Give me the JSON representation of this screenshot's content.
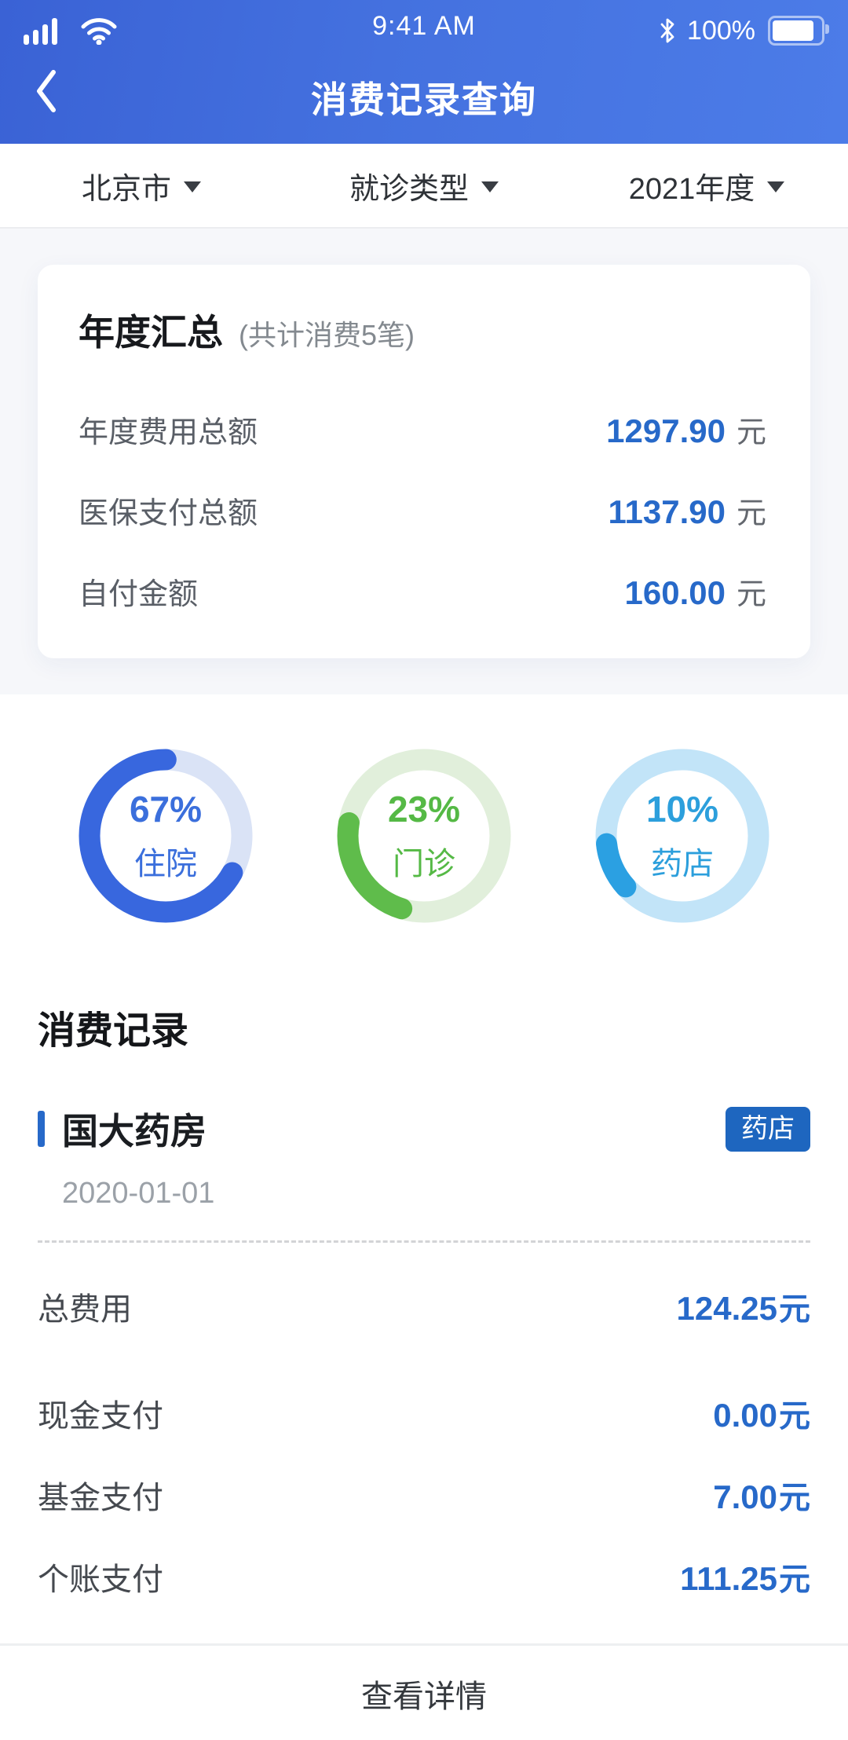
{
  "status_bar": {
    "time": "9:41 AM",
    "battery_pct": "100%"
  },
  "header": {
    "title": "消费记录查询"
  },
  "filter_bar": {
    "options": [
      {
        "label": "北京市"
      },
      {
        "label": "就诊类型"
      },
      {
        "label": "2021年度"
      }
    ]
  },
  "summary_card": {
    "title": "年度汇总",
    "subtitle": "(共计消费5笔)",
    "rows": [
      {
        "label": "年度费用总额",
        "value": "1297.90",
        "unit": "元"
      },
      {
        "label": "医保支付总额",
        "value": "1137.90",
        "unit": "元"
      },
      {
        "label": "自付金额",
        "value": "160.00",
        "unit": "元"
      }
    ]
  },
  "chart_data": {
    "type": "donut",
    "legend_position": "inside",
    "series": [
      {
        "label": "住院",
        "value": 67,
        "pct_label": "67%",
        "color": "#3867DE",
        "track_color": "#DAE3F6",
        "text_color": "#3B6FDC",
        "start_deg": 119
      },
      {
        "label": "门诊",
        "value": 23,
        "pct_label": "23%",
        "color": "#5FBC4B",
        "track_color": "#E1EFDB",
        "text_color": "#55B945",
        "start_deg": 197
      },
      {
        "label": "药店",
        "value": 10,
        "pct_label": "10%",
        "color": "#2BA0E2",
        "track_color": "#C2E4F8",
        "text_color": "#2C9FDC",
        "start_deg": 228
      }
    ]
  },
  "records": {
    "heading": "消费记录",
    "items": [
      {
        "name": "国大药房",
        "badge": "药店",
        "date": "2020-01-01",
        "fees": [
          {
            "label": "总费用",
            "value": "124.25",
            "unit": "元"
          },
          {
            "label": "现金支付",
            "value": "0.00",
            "unit": "元"
          },
          {
            "label": "基金支付",
            "value": "7.00",
            "unit": "元"
          },
          {
            "label": "个账支付",
            "value": "111.25",
            "unit": "元"
          }
        ],
        "footer": "查看详情"
      }
    ]
  }
}
